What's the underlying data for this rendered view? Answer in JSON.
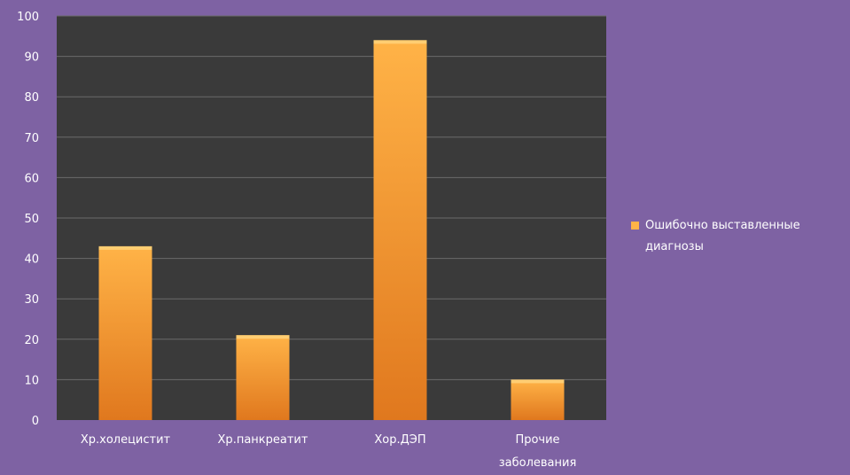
{
  "chart_data": {
    "type": "bar",
    "categories": [
      "Хр.холецистит",
      "Хр.панкреатит",
      "Хор.ДЭП",
      "Прочие заболевания"
    ],
    "category_lines": [
      [
        "Хр.холецистит"
      ],
      [
        "Хр.панкреатит"
      ],
      [
        "Хор.ДЭП"
      ],
      [
        "Прочие",
        "заболевания"
      ]
    ],
    "series": [
      {
        "name": "Ошибочно выставленные диагнозы",
        "values": [
          43,
          21,
          94,
          10
        ]
      }
    ],
    "legend_lines": [
      "Ошибочно выставленные",
      "диагнозы"
    ],
    "ylim": [
      0,
      100
    ],
    "yticks": [
      0,
      10,
      20,
      30,
      40,
      50,
      60,
      70,
      80,
      90,
      100
    ],
    "grid": true,
    "legend_position": "right",
    "title": "",
    "xlabel": "",
    "ylabel": ""
  },
  "colors": {
    "page_background": "#7e62a3",
    "plot_background": "#3a3a3a",
    "gridline": "#6a6a6a",
    "bar_top": "#ffb347",
    "bar_bottom": "#e0781e",
    "text": "#ffffff"
  }
}
